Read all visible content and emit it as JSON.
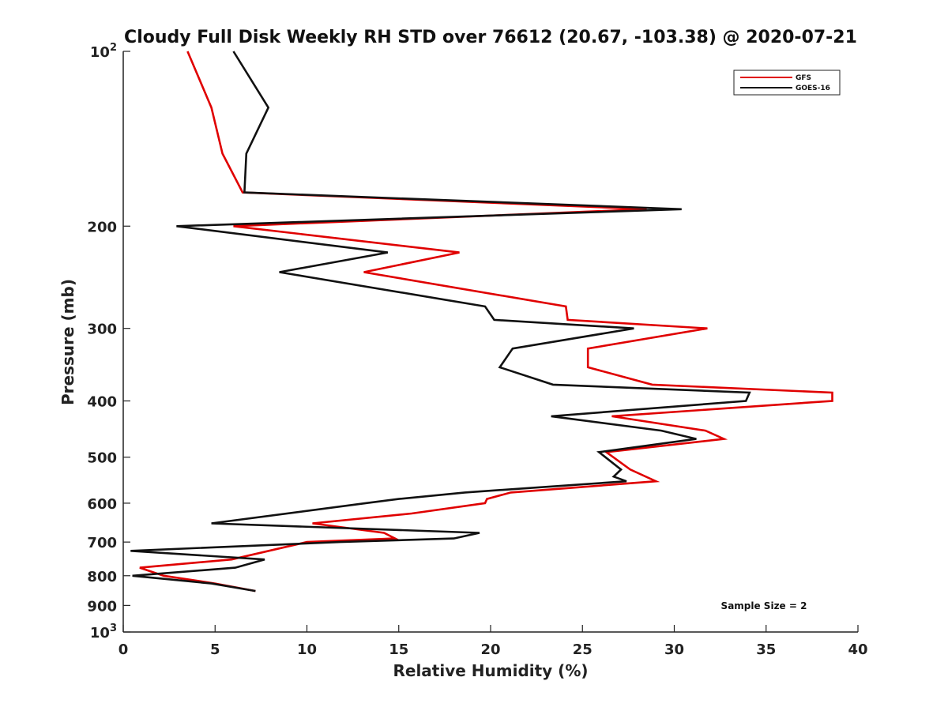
{
  "chart_data": {
    "type": "line",
    "title": "Cloudy Full Disk Weekly RH STD over 76612 (20.67, -103.38) @ 2020-07-21",
    "xlabel": "Relative Humidity (%)",
    "ylabel": "Pressure (mb)",
    "xlim": [
      0,
      40
    ],
    "ylim": [
      1000,
      100
    ],
    "yscale": "log",
    "x_ticks": [
      0,
      5,
      10,
      15,
      20,
      25,
      30,
      35,
      40
    ],
    "x_tick_labels": [
      "0",
      "5",
      "10",
      "15",
      "20",
      "25",
      "30",
      "35",
      "40"
    ],
    "y_ticks": [
      100,
      200,
      300,
      400,
      500,
      600,
      700,
      800,
      900,
      1000
    ],
    "y_tick_labels": [
      {
        "base": "10",
        "exp": "2"
      },
      {
        "base": "200",
        "exp": ""
      },
      {
        "base": "300",
        "exp": ""
      },
      {
        "base": "400",
        "exp": ""
      },
      {
        "base": "500",
        "exp": ""
      },
      {
        "base": "600",
        "exp": ""
      },
      {
        "base": "700",
        "exp": ""
      },
      {
        "base": "800",
        "exp": ""
      },
      {
        "base": "900",
        "exp": ""
      },
      {
        "base": "10",
        "exp": "3"
      }
    ],
    "legend_position": "top-right",
    "annotation": "Sample Size = 2",
    "series": [
      {
        "name": "GFS",
        "color": "#e00000",
        "points": [
          [
            3.5,
            100
          ],
          [
            4.8,
            125
          ],
          [
            5.4,
            150
          ],
          [
            6.5,
            175
          ],
          [
            28.5,
            187
          ],
          [
            6.0,
            200
          ],
          [
            18.3,
            222
          ],
          [
            13.1,
            240
          ],
          [
            24.1,
            275
          ],
          [
            24.2,
            290
          ],
          [
            31.8,
            300
          ],
          [
            25.3,
            325
          ],
          [
            25.3,
            350
          ],
          [
            28.8,
            375
          ],
          [
            38.6,
            387
          ],
          [
            38.6,
            400
          ],
          [
            26.6,
            425
          ],
          [
            31.7,
            450
          ],
          [
            32.7,
            465
          ],
          [
            26.3,
            490
          ],
          [
            27.6,
            525
          ],
          [
            29.0,
            550
          ],
          [
            21.1,
            575
          ],
          [
            19.8,
            590
          ],
          [
            19.7,
            600
          ],
          [
            15.7,
            625
          ],
          [
            10.3,
            650
          ],
          [
            14.2,
            675
          ],
          [
            14.8,
            690
          ],
          [
            10.0,
            700
          ],
          [
            5.9,
            750
          ],
          [
            0.9,
            775
          ],
          [
            2.2,
            800
          ],
          [
            5.0,
            825
          ],
          [
            7.2,
            850
          ]
        ]
      },
      {
        "name": "GOES-16",
        "color": "#111111",
        "points": [
          [
            6.0,
            100
          ],
          [
            7.9,
            125
          ],
          [
            6.7,
            150
          ],
          [
            6.6,
            175
          ],
          [
            30.4,
            187
          ],
          [
            2.9,
            200
          ],
          [
            14.4,
            222
          ],
          [
            8.5,
            240
          ],
          [
            19.7,
            275
          ],
          [
            20.2,
            290
          ],
          [
            27.8,
            300
          ],
          [
            21.2,
            325
          ],
          [
            20.5,
            350
          ],
          [
            23.4,
            375
          ],
          [
            34.1,
            387
          ],
          [
            33.9,
            400
          ],
          [
            23.3,
            425
          ],
          [
            29.3,
            450
          ],
          [
            31.2,
            465
          ],
          [
            25.9,
            490
          ],
          [
            27.1,
            525
          ],
          [
            26.7,
            540
          ],
          [
            27.4,
            550
          ],
          [
            18.6,
            575
          ],
          [
            15.0,
            590
          ],
          [
            13.2,
            600
          ],
          [
            4.8,
            650
          ],
          [
            19.4,
            675
          ],
          [
            18.0,
            690
          ],
          [
            11.8,
            700
          ],
          [
            0.4,
            725
          ],
          [
            7.7,
            750
          ],
          [
            6.1,
            775
          ],
          [
            0.5,
            800
          ],
          [
            4.8,
            825
          ],
          [
            7.2,
            850
          ]
        ]
      }
    ]
  }
}
